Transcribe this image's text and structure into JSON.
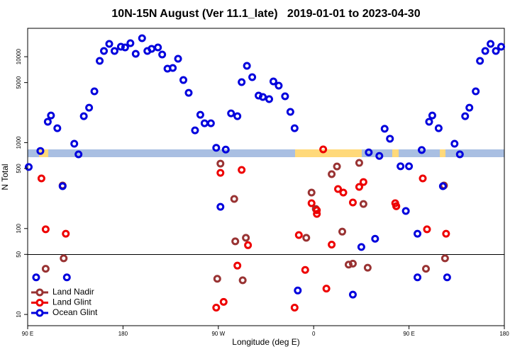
{
  "chart_data": {
    "type": "scatter",
    "title": "10N-15N August (Ver 11.1_late)   2019-01-01 to 2023-04-30",
    "xlabel": "Longitude (deg E)",
    "ylabel": "N Total",
    "xlim": [
      90,
      540
    ],
    "xticks": [
      {
        "value": 90,
        "label": "90 E"
      },
      180,
      {
        "value": 270,
        "label": "90 W"
      },
      {
        "value": 360,
        "label": "0"
      },
      {
        "value": 450,
        "label": "90 E"
      },
      {
        "value": 540,
        "label": "180"
      }
    ],
    "ylim": [
      7.4,
      21400
    ],
    "yscale": "log",
    "yticks": [
      10,
      50,
      100,
      500,
      1000,
      5000,
      10000
    ],
    "legend": "lower left",
    "series": [
      {
        "name": "Land Nadir",
        "color": "#993333",
        "x": [
          107,
          123,
          124,
          269,
          272,
          285,
          286,
          293,
          296,
          353,
          358,
          362,
          377,
          382,
          387,
          393,
          397,
          403,
          407,
          411,
          438,
          466,
          483,
          484
        ],
        "values": [
          34,
          317,
          45,
          26,
          570,
          221,
          71,
          25,
          78,
          78,
          262,
          169,
          429,
          528,
          92,
          38,
          39,
          581,
          193,
          35,
          182,
          34,
          317,
          45
        ]
      },
      {
        "name": "Land Glint",
        "color": "#ee0000",
        "x": [
          103,
          107,
          126,
          268,
          272,
          275,
          288,
          292,
          298,
          342,
          346,
          352,
          358,
          363,
          363,
          369,
          372,
          377,
          383,
          388,
          397,
          403,
          407,
          437,
          438,
          463,
          467,
          485
        ],
        "values": [
          383,
          98,
          87,
          12,
          445,
          14,
          37,
          481,
          64,
          12,
          84,
          33,
          197,
          163,
          148,
          834,
          20,
          65,
          288,
          262,
          201,
          305,
          348,
          197,
          182,
          383,
          98,
          87
        ]
      },
      {
        "name": "Ocean Glint",
        "color": "#0000dd",
        "x": [
          91,
          98,
          102,
          109,
          112,
          118,
          123,
          127,
          134,
          138,
          143,
          148,
          153,
          158,
          162,
          167,
          172,
          178,
          182,
          187,
          192,
          198,
          203,
          207,
          213,
          217,
          222,
          227,
          232,
          237,
          242,
          248,
          253,
          257,
          263,
          268,
          272,
          277,
          282,
          288,
          292,
          297,
          302,
          308,
          312,
          318,
          322,
          327,
          333,
          338,
          342,
          345,
          397,
          405,
          412,
          418,
          422,
          427,
          432,
          442,
          447,
          450,
          458,
          458,
          462,
          469,
          472,
          478,
          482,
          486,
          493,
          498,
          503,
          507,
          513,
          517,
          522,
          527,
          532,
          537
        ],
        "values": [
          520,
          27,
          800,
          1750,
          2070,
          1470,
          311,
          27,
          970,
          730,
          2030,
          2550,
          3950,
          8940,
          11670,
          14100,
          11670,
          13070,
          12820,
          14370,
          10810,
          16410,
          11670,
          12350,
          12820,
          10610,
          7260,
          7390,
          9460,
          5350,
          3800,
          1390,
          2110,
          1680,
          1680,
          870,
          179,
          830,
          2190,
          2030,
          5060,
          7830,
          5780,
          3530,
          3400,
          3210,
          5160,
          4600,
          3460,
          2280,
          1470,
          19,
          17,
          61,
          770,
          76,
          700,
          1450,
          1110,
          530,
          160,
          530,
          87,
          27,
          820,
          1750,
          2070,
          1470,
          311,
          27,
          970,
          730,
          2030,
          2550,
          3950,
          8940,
          11670,
          14100,
          11670,
          13070
        ]
      }
    ]
  }
}
